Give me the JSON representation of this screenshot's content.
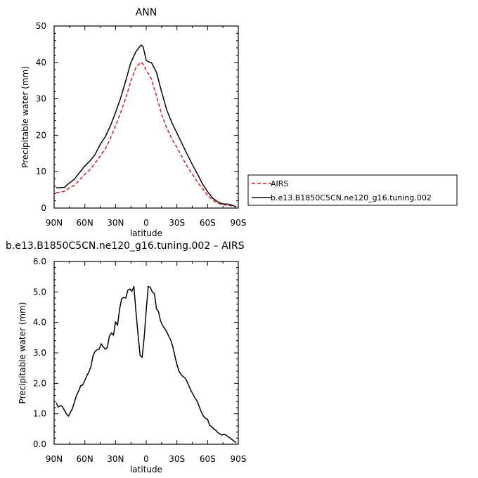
{
  "chart_data": [
    {
      "type": "line",
      "title": "ANN",
      "xlabel": "latitude",
      "ylabel": "Precipitable water (mm)",
      "xlim": [
        90,
        -90
      ],
      "ylim": [
        0,
        50
      ],
      "x_ticks": [
        90,
        60,
        30,
        0,
        -30,
        -60,
        -90
      ],
      "x_tick_labels": [
        "90N",
        "60N",
        "30N",
        "0",
        "30S",
        "60S",
        "90S"
      ],
      "y_ticks": [
        0,
        10,
        20,
        30,
        40,
        50
      ],
      "y_tick_labels": [
        "0",
        "10",
        "20",
        "30",
        "40",
        "50"
      ],
      "legend_position": "right",
      "series": [
        {
          "name": "AIRS",
          "color": "#e8191d",
          "dash": "dashed",
          "x": [
            88,
            85,
            80,
            75,
            70,
            65,
            60,
            55,
            50,
            45,
            40,
            35,
            30,
            25,
            20,
            15,
            10,
            5,
            2,
            0,
            -2,
            -5,
            -10,
            -15,
            -20,
            -25,
            -30,
            -35,
            -40,
            -45,
            -50,
            -55,
            -60,
            -65,
            -70,
            -75,
            -80,
            -85,
            -88
          ],
          "values": [
            4.3,
            4.3,
            4.6,
            5.6,
            6.3,
            7.8,
            9.3,
            10.5,
            12.3,
            14.3,
            16.2,
            19.2,
            22.5,
            26.2,
            30.2,
            35.0,
            38.6,
            40.1,
            39.2,
            37.6,
            37.0,
            35.5,
            30.8,
            25.8,
            22.0,
            19.0,
            16.7,
            14.0,
            11.5,
            9.3,
            7.2,
            5.3,
            3.5,
            2.2,
            1.3,
            0.9,
            0.8,
            0.5,
            0.3
          ]
        },
        {
          "name": "b.e13.B1850C5CN.ne120_g16.tuning.002",
          "color": "#000000",
          "dash": "solid",
          "x": [
            88,
            85,
            80,
            75,
            70,
            65,
            60,
            55,
            50,
            45,
            40,
            35,
            30,
            25,
            20,
            15,
            10,
            5,
            3,
            0,
            -2,
            -5,
            -10,
            -15,
            -20,
            -25,
            -30,
            -35,
            -40,
            -45,
            -50,
            -55,
            -60,
            -65,
            -70,
            -75,
            -80,
            -85,
            -88
          ],
          "values": [
            5.6,
            5.6,
            5.7,
            6.9,
            8.0,
            9.8,
            11.6,
            12.9,
            14.7,
            17.5,
            19.6,
            22.6,
            26.2,
            30.2,
            35.0,
            40.0,
            43.0,
            44.8,
            44.3,
            40.6,
            40.2,
            40.0,
            37.3,
            32.0,
            27.0,
            23.5,
            20.6,
            17.7,
            14.8,
            12.0,
            9.4,
            6.6,
            4.5,
            2.7,
            1.7,
            1.1,
            1.1,
            0.7,
            0.3
          ]
        }
      ]
    },
    {
      "type": "line",
      "title": "b.e13.B1850C5CN.ne120_g16.tuning.002 – AIRS",
      "xlabel": "latitude",
      "ylabel": "Precipitable water (mm)",
      "xlim": [
        90,
        -90
      ],
      "ylim": [
        0,
        6
      ],
      "x_ticks": [
        90,
        60,
        30,
        0,
        -30,
        -60,
        -90
      ],
      "x_tick_labels": [
        "90N",
        "60N",
        "30N",
        "0",
        "30S",
        "60S",
        "90S"
      ],
      "y_ticks": [
        0,
        1,
        2,
        3,
        4,
        5,
        6
      ],
      "y_tick_labels": [
        "0.0",
        "1.0",
        "2.0",
        "3.0",
        "4.0",
        "5.0",
        "6.0"
      ],
      "series": [
        {
          "color": "#000000",
          "dash": "solid",
          "x": [
            88,
            86,
            84,
            82,
            80,
            78,
            76,
            74,
            72,
            70,
            68,
            66,
            64,
            62,
            60,
            58,
            56,
            54,
            52,
            50,
            48,
            46,
            44,
            42,
            40,
            38,
            36,
            34,
            32,
            30,
            28,
            26,
            24,
            22,
            20,
            18,
            16,
            14,
            12,
            10,
            8,
            6,
            4,
            2,
            0,
            -2,
            -4,
            -6,
            -8,
            -10,
            -12,
            -14,
            -16,
            -18,
            -20,
            -22,
            -24,
            -26,
            -28,
            -30,
            -32,
            -34,
            -36,
            -38,
            -40,
            -42,
            -44,
            -46,
            -48,
            -50,
            -52,
            -54,
            -56,
            -58,
            -60,
            -62,
            -64,
            -66,
            -68,
            -70,
            -72,
            -74,
            -76,
            -78,
            -80,
            -82,
            -84,
            -86,
            -88
          ],
          "values": [
            1.36,
            1.22,
            1.27,
            1.24,
            1.12,
            1.0,
            0.92,
            1.05,
            1.18,
            1.4,
            1.62,
            1.75,
            1.92,
            1.95,
            2.1,
            2.25,
            2.38,
            2.55,
            2.9,
            3.05,
            3.1,
            3.12,
            3.3,
            3.2,
            3.12,
            3.18,
            3.55,
            3.65,
            3.58,
            4.02,
            3.9,
            4.45,
            4.78,
            4.82,
            4.8,
            5.05,
            5.1,
            5.02,
            5.18,
            4.35,
            3.6,
            2.92,
            2.85,
            3.5,
            4.4,
            5.18,
            5.15,
            5.0,
            4.95,
            4.45,
            4.35,
            4.05,
            3.9,
            3.8,
            3.7,
            3.55,
            3.42,
            3.2,
            2.9,
            2.62,
            2.4,
            2.3,
            2.22,
            2.18,
            2.05,
            1.9,
            1.75,
            1.62,
            1.5,
            1.4,
            1.22,
            1.05,
            0.92,
            0.85,
            0.82,
            0.62,
            0.58,
            0.5,
            0.46,
            0.38,
            0.34,
            0.3,
            0.33,
            0.3,
            0.25,
            0.2,
            0.15,
            0.1,
            0.05
          ]
        }
      ]
    }
  ]
}
